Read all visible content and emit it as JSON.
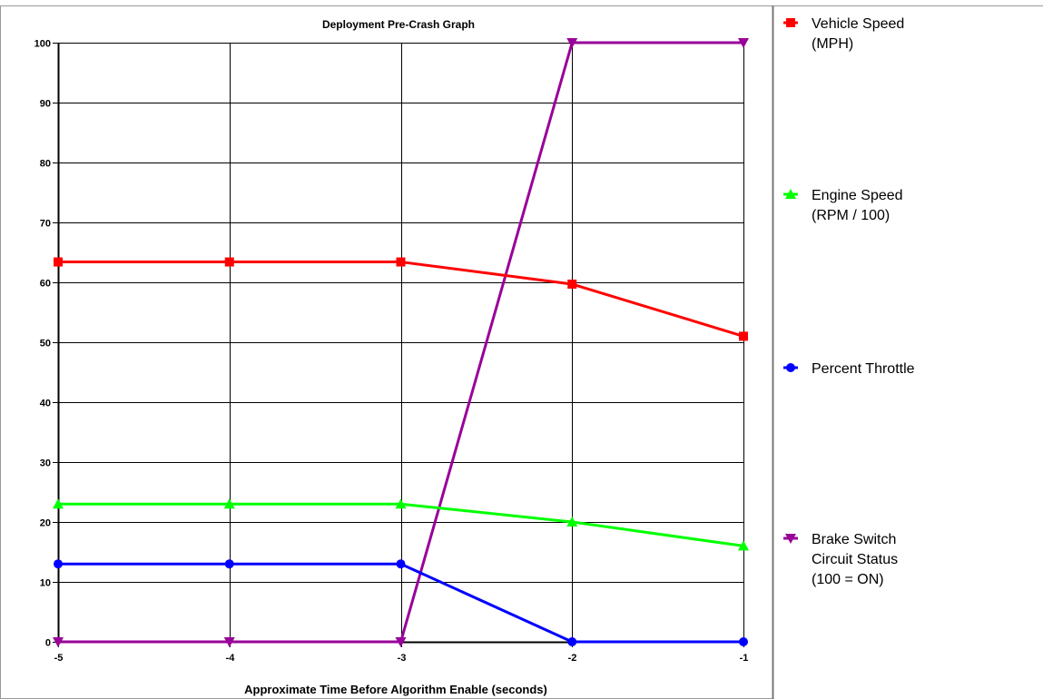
{
  "chart_data": {
    "type": "line",
    "title": "Deployment Pre-Crash Graph",
    "xlabel": "Approximate Time Before Algorithm Enable (seconds)",
    "ylabel": "",
    "x": [
      -5,
      -4,
      -3,
      -2,
      -1
    ],
    "x_tick_labels": [
      "-5",
      "-4",
      "-3",
      "-2",
      "-1"
    ],
    "ylim": [
      0,
      100
    ],
    "y_ticks": [
      0,
      10,
      20,
      30,
      40,
      50,
      60,
      70,
      80,
      90,
      100
    ],
    "grid": true,
    "legend_position": "right",
    "series": [
      {
        "name_lines": [
          "Vehicle Speed",
          "(MPH)"
        ],
        "color": "#ff0000",
        "marker": "square",
        "values": [
          63.4,
          63.4,
          63.4,
          59.7,
          51
        ]
      },
      {
        "name_lines": [
          "Engine Speed",
          "(RPM / 100)"
        ],
        "color": "#00ff00",
        "marker": "triangle-up",
        "values": [
          23,
          23,
          23,
          20,
          16
        ]
      },
      {
        "name_lines": [
          "Percent Throttle"
        ],
        "color": "#0000ff",
        "marker": "circle",
        "values": [
          13,
          13,
          13,
          0,
          0
        ]
      },
      {
        "name_lines": [
          "Brake Switch",
          "Circuit Status",
          "(100 = ON)"
        ],
        "color": "#990099",
        "marker": "triangle-down",
        "values": [
          0,
          0,
          0,
          100,
          100
        ]
      }
    ]
  }
}
